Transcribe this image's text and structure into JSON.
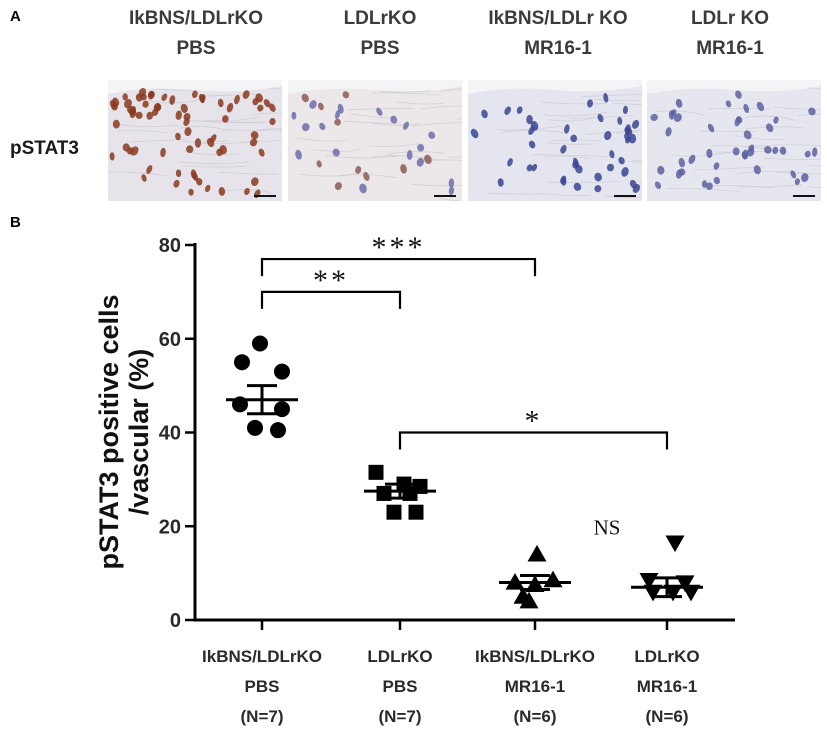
{
  "panel_a": {
    "letter": "A",
    "row_label": "pSTAT3",
    "headers": [
      [
        "IkBNS/LDLrKO",
        "PBS"
      ],
      [
        "LDLrKO",
        "PBS"
      ],
      [
        "IkBNS/LDLr KO",
        "MR16-1"
      ],
      [
        "LDLr KO",
        "MR16-1"
      ]
    ],
    "images": [
      {
        "style": "dense-brown-nuclei",
        "nucleus_color": "#8a3a1e",
        "bg_color": "#e6e4ea"
      },
      {
        "style": "few-brown-nuclei",
        "nucleus_color": "#8d5a55",
        "bg_color": "#ece7e8"
      },
      {
        "style": "blue-nuclei",
        "nucleus_color": "#3a4690",
        "bg_color": "#e4e5ee"
      },
      {
        "style": "blue-nuclei-faint",
        "nucleus_color": "#5a60a0",
        "bg_color": "#e6e7ee"
      }
    ]
  },
  "panel_b": {
    "letter": "B"
  },
  "chart_data": {
    "type": "scatter",
    "ylabel_lines": [
      "pSTAT3 positive cells",
      "/vascular (%)"
    ],
    "ylim": [
      0,
      80
    ],
    "yticks": [
      0,
      20,
      40,
      60,
      80
    ],
    "grid": false,
    "categories": [
      {
        "lines": [
          "IkBNS/LDLrKO",
          "PBS",
          "(N=7)"
        ]
      },
      {
        "lines": [
          "LDLrKO",
          "PBS",
          "(N=7)"
        ]
      },
      {
        "lines": [
          "IkBNS/LDLrKO",
          "MR16-1",
          "(N=6)"
        ]
      },
      {
        "lines": [
          "LDLrKO",
          "MR16-1",
          "(N=6)"
        ]
      }
    ],
    "series": [
      {
        "marker": "circle",
        "mean": 47,
        "sem": 3,
        "points": [
          [
            -0.02,
            59
          ],
          [
            -0.2,
            55
          ],
          [
            0.2,
            53
          ],
          [
            -0.22,
            46
          ],
          [
            0.2,
            45
          ],
          [
            -0.07,
            41
          ],
          [
            0.16,
            40.5
          ]
        ]
      },
      {
        "marker": "square",
        "mean": 27.5,
        "sem": 1.5,
        "points": [
          [
            -0.24,
            31.5
          ],
          [
            0.04,
            29
          ],
          [
            0.2,
            28.5
          ],
          [
            -0.16,
            27
          ],
          [
            0.1,
            27
          ],
          [
            -0.06,
            23
          ],
          [
            0.16,
            23
          ]
        ]
      },
      {
        "marker": "triangle-up",
        "mean": 8,
        "sem": 1.5,
        "points": [
          [
            -0.2,
            8
          ],
          [
            0.18,
            8.5
          ],
          [
            0,
            7.5
          ],
          [
            0.02,
            14
          ],
          [
            -0.12,
            5
          ],
          [
            -0.06,
            4
          ]
        ]
      },
      {
        "marker": "triangle-down",
        "mean": 7,
        "sem": 2,
        "points": [
          [
            0.08,
            16.5
          ],
          [
            -0.18,
            8.5
          ],
          [
            0.18,
            8
          ],
          [
            -0.14,
            6
          ],
          [
            0.06,
            6
          ],
          [
            0.24,
            6
          ]
        ]
      }
    ],
    "annotations": [
      {
        "from": 0,
        "to": 1,
        "y": 70,
        "label": "**",
        "style": "bracket"
      },
      {
        "from": 0,
        "to": 2,
        "y": 77,
        "label": "***",
        "style": "bracket"
      },
      {
        "from": 1,
        "to": 3,
        "y": 40,
        "label": "*",
        "style": "bracket"
      },
      {
        "at": 2.5,
        "y": 20,
        "label": "NS",
        "style": "text"
      }
    ]
  }
}
